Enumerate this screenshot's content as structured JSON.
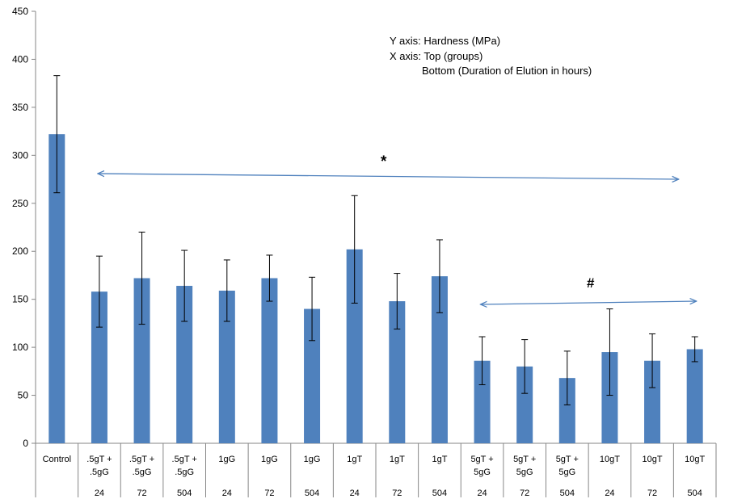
{
  "chart_data": {
    "type": "bar",
    "categories": [
      "Control",
      ".5gT + .5gG",
      ".5gT + .5gG",
      ".5gT + .5gG",
      "1gG",
      "1gG",
      "1gG",
      "1gT",
      "1gT",
      "1gT",
      "5gT + 5gG",
      "5gT + 5gG",
      "5gT + 5gG",
      "10gT",
      "10gT",
      "10gT"
    ],
    "durations": [
      "",
      "24",
      "72",
      "504",
      "24",
      "72",
      "504",
      "24",
      "72",
      "504",
      "24",
      "72",
      "504",
      "24",
      "72",
      "504"
    ],
    "values": [
      322,
      158,
      172,
      164,
      159,
      172,
      140,
      202,
      148,
      174,
      86,
      80,
      68,
      95,
      86,
      98
    ],
    "error": [
      61,
      37,
      48,
      37,
      32,
      24,
      33,
      56,
      29,
      38,
      25,
      28,
      28,
      45,
      28,
      13
    ],
    "ylim": [
      0,
      450
    ],
    "yticks": [
      0,
      50,
      100,
      150,
      200,
      250,
      300,
      350,
      400,
      450
    ],
    "grid": false,
    "bar_color": "#4f81bd",
    "arrow_color": "#4f81bd",
    "annotations": {
      "y_axis_note": "Y axis: Hardness (MPa)",
      "x_axis_note": "X axis: Top (groups)",
      "x_axis_note2": "Bottom (Duration of Elution in hours)",
      "star": "*",
      "hash": "#"
    },
    "brackets": [
      {
        "symbol": "*",
        "from_index": 1,
        "to_index": 15
      },
      {
        "symbol": "#",
        "from_index": 10,
        "to_index": 15
      }
    ]
  }
}
